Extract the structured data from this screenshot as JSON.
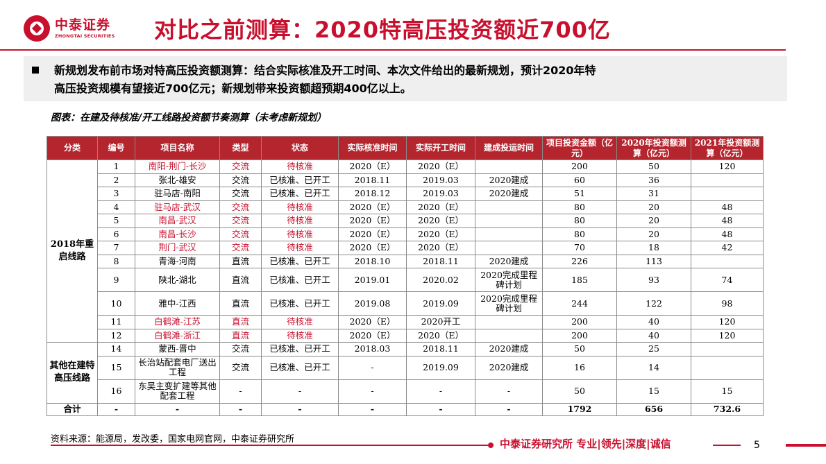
{
  "header": {
    "logo_cn": "中泰证券",
    "logo_en": "ZHONGTAI SECURITIES",
    "title": "对比之前测算：2020特高压投资额近700亿",
    "brand_color": "#c8102e"
  },
  "summary": {
    "line1": "新规划发布前市场对特高压投资额测算：结合实际核准及开工时间、本次文件给出的最新规划，预计2020年特",
    "line2": "高压投资规模有望接近700亿元；新规划带来投资额超预期400亿以上。"
  },
  "caption": "图表：在建及待核准/开工线路投资额节奏测算（未考虑新规划）",
  "table": {
    "headers": [
      "分类",
      "编号",
      "项目名称",
      "类型",
      "状态",
      "实际核准时间",
      "实际开工时间",
      "建成投运时间",
      "项目投资金额（亿元）",
      "2020年投资额测算（亿元）",
      "2021年投资额测算（亿元）"
    ],
    "groups": [
      "2018年重启线路",
      "其他在建特高压线路"
    ],
    "rows": [
      {
        "no": "1",
        "name": "南阳-荆门-长沙",
        "type": "交流",
        "status": "待核准",
        "approve": "2020（E）",
        "start": "2020（E）",
        "complete": "",
        "invest": "200",
        "y2020": "50",
        "y2021": "120",
        "highlight": true
      },
      {
        "no": "2",
        "name": "张北-雄安",
        "type": "交流",
        "status": "已核准、已开工",
        "approve": "2018.11",
        "start": "2019.03",
        "complete": "2020建成",
        "invest": "60",
        "y2020": "36",
        "y2021": "",
        "highlight": false
      },
      {
        "no": "3",
        "name": "驻马店-南阳",
        "type": "交流",
        "status": "已核准、已开工",
        "approve": "2018.12",
        "start": "2019.03",
        "complete": "2020建成",
        "invest": "51",
        "y2020": "31",
        "y2021": "",
        "highlight": false
      },
      {
        "no": "4",
        "name": "驻马店-武汉",
        "type": "交流",
        "status": "待核准",
        "approve": "2020（E）",
        "start": "2020（E）",
        "complete": "",
        "invest": "80",
        "y2020": "20",
        "y2021": "48",
        "highlight": true
      },
      {
        "no": "5",
        "name": "南昌-武汉",
        "type": "交流",
        "status": "待核准",
        "approve": "2020（E）",
        "start": "2020（E）",
        "complete": "",
        "invest": "80",
        "y2020": "20",
        "y2021": "48",
        "highlight": true
      },
      {
        "no": "6",
        "name": "南昌-长沙",
        "type": "交流",
        "status": "待核准",
        "approve": "2020（E）",
        "start": "2020（E）",
        "complete": "",
        "invest": "80",
        "y2020": "20",
        "y2021": "48",
        "highlight": true
      },
      {
        "no": "7",
        "name": "荆门-武汉",
        "type": "交流",
        "status": "待核准",
        "approve": "2020（E）",
        "start": "2020（E）",
        "complete": "",
        "invest": "70",
        "y2020": "18",
        "y2021": "42",
        "highlight": true
      },
      {
        "no": "8",
        "name": "青海-河南",
        "type": "直流",
        "status": "已核准、已开工",
        "approve": "2018.10",
        "start": "2018.11",
        "complete": "2020建成",
        "invest": "226",
        "y2020": "113",
        "y2021": "",
        "highlight": false
      },
      {
        "no": "9",
        "name": "陕北-湖北",
        "type": "直流",
        "status": "已核准、已开工",
        "approve": "2019.01",
        "start": "2020.02",
        "complete": "2020完成里程碑计划",
        "invest": "185",
        "y2020": "93",
        "y2021": "74",
        "highlight": false
      },
      {
        "no": "10",
        "name": "雅中-江西",
        "type": "直流",
        "status": "已核准、已开工",
        "approve": "2019.08",
        "start": "2019.09",
        "complete": "2020完成里程碑计划",
        "invest": "244",
        "y2020": "122",
        "y2021": "98",
        "highlight": false
      },
      {
        "no": "11",
        "name": "白鹤滩-江苏",
        "type": "直流",
        "status": "待核准",
        "approve": "2020（E）",
        "start": "2020开工",
        "complete": "",
        "invest": "200",
        "y2020": "40",
        "y2021": "120",
        "highlight": true
      },
      {
        "no": "12",
        "name": "白鹤滩-浙江",
        "type": "直流",
        "status": "待核准",
        "approve": "2020（E）",
        "start": "2020（E）",
        "complete": "",
        "invest": "200",
        "y2020": "40",
        "y2021": "120",
        "highlight": true
      },
      {
        "no": "14",
        "name": "蒙西-晋中",
        "type": "交流",
        "status": "已核准、已开工",
        "approve": "2018.03",
        "start": "2018.11",
        "complete": "2020建成",
        "invest": "50",
        "y2020": "25",
        "y2021": "",
        "highlight": false
      },
      {
        "no": "15",
        "name": "长治站配套电厂送出工程",
        "type": "交流",
        "status": "已核准、已开工",
        "approve": "-",
        "start": "2019.09",
        "complete": "2020建成",
        "invest": "16",
        "y2020": "14",
        "y2021": "",
        "highlight": false
      },
      {
        "no": "16",
        "name": "东吴主变扩建等其他配套工程",
        "type": "-",
        "status": "-",
        "approve": "-",
        "start": "-",
        "complete": "-",
        "invest": "50",
        "y2020": "15",
        "y2021": "15",
        "highlight": false
      }
    ],
    "total": {
      "label": "合计",
      "no": "-",
      "name": "-",
      "type": "-",
      "status": "-",
      "approve": "-",
      "start": "-",
      "complete": "-",
      "invest": "1792",
      "y2020": "656",
      "y2021": "732.6"
    }
  },
  "source": "资料来源：能源局，发改委，国家电网官网，中泰证券研究所",
  "footer": {
    "text": "中泰证券研究所 专业|领先|深度|诚信",
    "page": "5"
  }
}
